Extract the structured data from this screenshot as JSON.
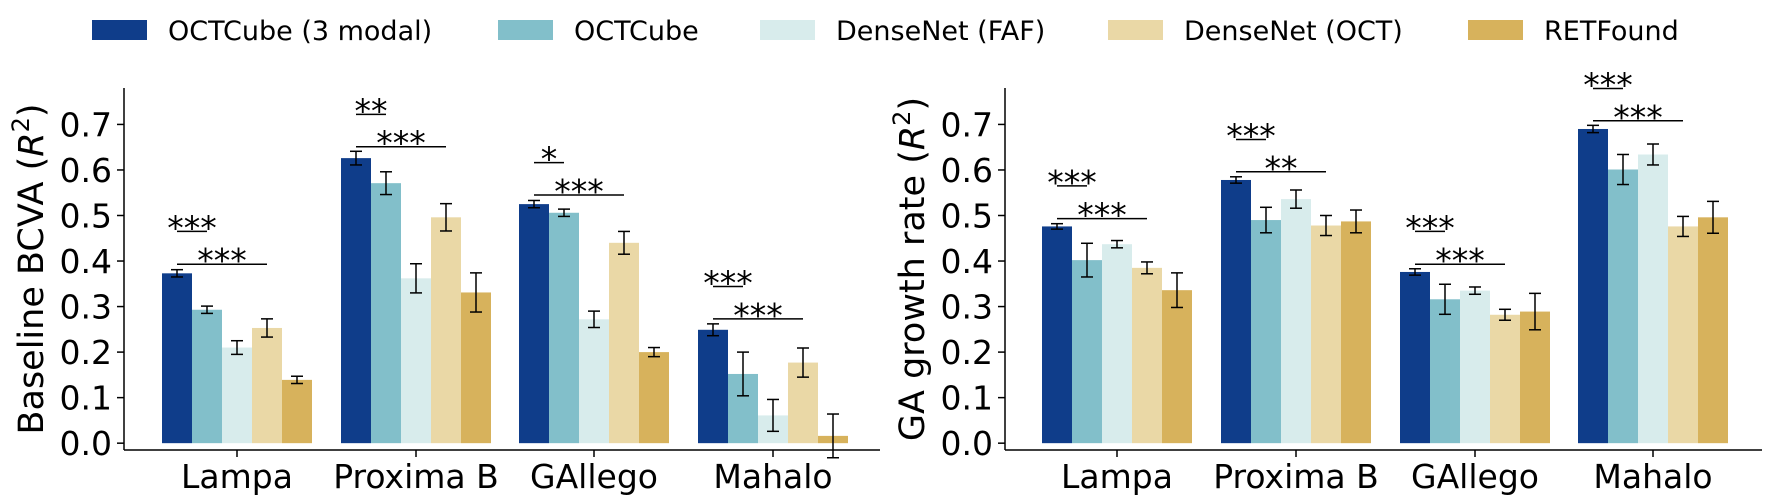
{
  "legend": [
    {
      "label": "OCTCube (3 modal)",
      "color": "#0f3d8a"
    },
    {
      "label": "OCTCube",
      "color": "#82bfca"
    },
    {
      "label": "DenseNet (FAF)",
      "color": "#d8ecec"
    },
    {
      "label": "DenseNet (OCT)",
      "color": "#ead8a6"
    },
    {
      "label": "RETFound",
      "color": "#d7b25c"
    }
  ],
  "chart_data": [
    {
      "type": "bar",
      "ylabel": "Baseline BCVA ($R^2$)",
      "ylabel_main": "Baseline BCVA (",
      "ylabel_var": "R",
      "ylabel_sup": "2",
      "ylabel_end": ")",
      "ylim": [
        -0.015,
        0.78
      ],
      "yticks": [
        "0.0",
        "0.1",
        "0.2",
        "0.3",
        "0.4",
        "0.5",
        "0.6",
        "0.7"
      ],
      "categories": [
        "Lampa",
        "Proxima B",
        "GAllego",
        "Mahalo"
      ],
      "series": [
        {
          "name": "OCTCube (3 modal)",
          "values": [
            0.373,
            0.626,
            0.525,
            0.249
          ],
          "err": [
            0.008,
            0.015,
            0.008,
            0.013
          ]
        },
        {
          "name": "OCTCube",
          "values": [
            0.293,
            0.571,
            0.506,
            0.152
          ],
          "err": [
            0.008,
            0.025,
            0.008,
            0.048
          ]
        },
        {
          "name": "DenseNet (FAF)",
          "values": [
            0.21,
            0.362,
            0.272,
            0.061
          ],
          "err": [
            0.015,
            0.032,
            0.018,
            0.035
          ]
        },
        {
          "name": "DenseNet (OCT)",
          "values": [
            0.253,
            0.496,
            0.44,
            0.177
          ],
          "err": [
            0.02,
            0.03,
            0.025,
            0.032
          ]
        },
        {
          "name": "RETFound",
          "values": [
            0.139,
            0.331,
            0.2,
            0.016
          ],
          "err": [
            0.008,
            0.043,
            0.01,
            0.048
          ]
        }
      ],
      "annotations": [
        {
          "category": 0,
          "label": "***",
          "from": 0,
          "to": 1,
          "y": 0.465
        },
        {
          "category": 0,
          "label": "***",
          "from": 0,
          "to": 3,
          "y": 0.393
        },
        {
          "category": 1,
          "label": "**",
          "from": 0,
          "to": 1,
          "y": 0.722
        },
        {
          "category": 1,
          "label": "***",
          "from": 0,
          "to": 3,
          "y": 0.651
        },
        {
          "category": 2,
          "label": "*",
          "from": 0,
          "to": 1,
          "y": 0.616
        },
        {
          "category": 2,
          "label": "***",
          "from": 0,
          "to": 3,
          "y": 0.545
        },
        {
          "category": 3,
          "label": "***",
          "from": 0,
          "to": 1,
          "y": 0.344
        },
        {
          "category": 3,
          "label": "***",
          "from": 0,
          "to": 3,
          "y": 0.273
        }
      ]
    },
    {
      "type": "bar",
      "ylabel": "GA growth rate ($R^2$)",
      "ylabel_main": "GA growth rate (",
      "ylabel_var": "R",
      "ylabel_sup": "2",
      "ylabel_end": ")",
      "ylim": [
        -0.015,
        0.78
      ],
      "yticks": [
        "0.0",
        "0.1",
        "0.2",
        "0.3",
        "0.4",
        "0.5",
        "0.6",
        "0.7"
      ],
      "categories": [
        "Lampa",
        "Proxima B",
        "GAllego",
        "Mahalo"
      ],
      "series": [
        {
          "name": "OCTCube (3 modal)",
          "values": [
            0.476,
            0.578,
            0.376,
            0.69
          ],
          "err": [
            0.006,
            0.007,
            0.007,
            0.008
          ]
        },
        {
          "name": "OCTCube",
          "values": [
            0.402,
            0.49,
            0.316,
            0.601
          ],
          "err": [
            0.037,
            0.028,
            0.033,
            0.033
          ]
        },
        {
          "name": "DenseNet (FAF)",
          "values": [
            0.437,
            0.536,
            0.335,
            0.634
          ],
          "err": [
            0.008,
            0.02,
            0.008,
            0.023
          ]
        },
        {
          "name": "DenseNet (OCT)",
          "values": [
            0.385,
            0.478,
            0.282,
            0.476
          ],
          "err": [
            0.013,
            0.022,
            0.012,
            0.022
          ]
        },
        {
          "name": "RETFound",
          "values": [
            0.336,
            0.487,
            0.289,
            0.496
          ],
          "err": [
            0.038,
            0.025,
            0.04,
            0.035
          ]
        }
      ],
      "annotations": [
        {
          "category": 0,
          "label": "***",
          "from": 0,
          "to": 1,
          "y": 0.565
        },
        {
          "category": 0,
          "label": "***",
          "from": 0,
          "to": 3,
          "y": 0.493
        },
        {
          "category": 1,
          "label": "***",
          "from": 0,
          "to": 1,
          "y": 0.667
        },
        {
          "category": 1,
          "label": "**",
          "from": 0,
          "to": 3,
          "y": 0.596
        },
        {
          "category": 2,
          "label": "***",
          "from": 0,
          "to": 1,
          "y": 0.465
        },
        {
          "category": 2,
          "label": "***",
          "from": 0,
          "to": 3,
          "y": 0.393
        },
        {
          "category": 3,
          "label": "***",
          "from": 0,
          "to": 1,
          "y": 0.779
        },
        {
          "category": 3,
          "label": "***",
          "from": 0,
          "to": 3,
          "y": 0.708
        }
      ]
    }
  ]
}
